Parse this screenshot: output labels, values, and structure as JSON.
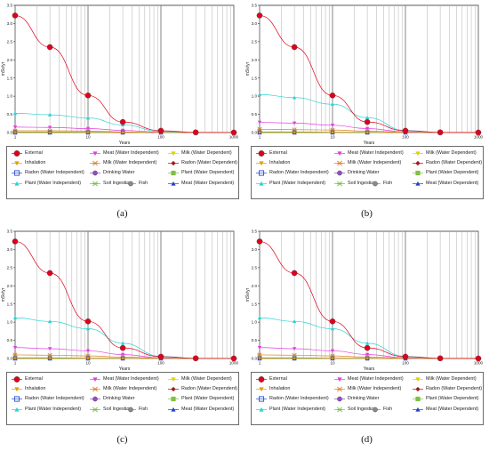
{
  "chart_data": [
    {
      "type": "line",
      "panel_label": "(a)",
      "xlabel": "Years",
      "ylabel": "mSv/yr",
      "xscale": "log",
      "xlim": [
        1,
        1000
      ],
      "ylim": [
        0,
        3.5
      ],
      "x_tick_labels": [
        "1",
        "10",
        "100",
        "1000"
      ],
      "y_tick_labels": [
        "0.0",
        "0.5",
        "1.0",
        "1.5",
        "2.0",
        "2.5",
        "3.0",
        "3.5"
      ],
      "grid": true,
      "legend_position": "bottom",
      "x": [
        1,
        3,
        10,
        30,
        100,
        300,
        1000
      ],
      "series": [
        {
          "name": "External",
          "color": "#e0001b",
          "marker": "circle",
          "values": [
            3.22,
            2.35,
            1.02,
            0.29,
            0.05,
            0.005,
            0.0
          ]
        },
        {
          "name": "Inhalation",
          "color": "#e0a000",
          "marker": "triangle-down",
          "values": [
            0.0,
            0.0,
            0.0,
            0.0,
            0.0,
            0.0,
            0.0
          ]
        },
        {
          "name": "Radon (Water Independent)",
          "color": "#2c4cd0",
          "marker": "square-open",
          "values": [
            0.0,
            0.0,
            0.0,
            0.0,
            0.0,
            0.0,
            0.0
          ]
        },
        {
          "name": "Plant (Water Independent)",
          "color": "#2fd2d2",
          "marker": "triangle-up",
          "values": [
            0.53,
            0.49,
            0.4,
            0.21,
            0.03,
            0.0,
            0.0
          ]
        },
        {
          "name": "Meat (Water Independent)",
          "color": "#e040e0",
          "marker": "triangle-down",
          "values": [
            0.15,
            0.14,
            0.11,
            0.06,
            0.01,
            0.0,
            0.0
          ]
        },
        {
          "name": "Milk (Water Independent)",
          "color": "#e08020",
          "marker": "asterisk",
          "values": [
            0.05,
            0.05,
            0.04,
            0.02,
            0.0,
            0.0,
            0.0
          ]
        },
        {
          "name": "Drinking Water",
          "color": "#9050c0",
          "marker": "circle",
          "values": [
            0.0,
            0.0,
            0.0,
            0.0,
            0.0,
            0.0,
            0.0
          ]
        },
        {
          "name": "Soil Ingestion",
          "color": "#70c040",
          "marker": "asterisk",
          "values": [
            0.02,
            0.02,
            0.01,
            0.01,
            0.0,
            0.0,
            0.0
          ]
        },
        {
          "name": "Fish",
          "color": "#8a8a8a",
          "marker": "circle",
          "values": [
            0.0,
            0.0,
            0.0,
            0.0,
            0.0,
            0.0,
            0.0
          ]
        },
        {
          "name": "Milk (Water Dependent)",
          "color": "#e0d000",
          "marker": "triangle-down",
          "values": [
            0.0,
            0.0,
            0.0,
            0.0,
            0.0,
            0.0,
            0.0
          ]
        },
        {
          "name": "Radon (Water Dependent)",
          "color": "#a01818",
          "marker": "diamond",
          "values": [
            0.0,
            0.0,
            0.0,
            0.0,
            0.0,
            0.0,
            0.0
          ]
        },
        {
          "name": "Plant (Water Dependent)",
          "color": "#80c040",
          "marker": "square",
          "values": [
            0.0,
            0.0,
            0.0,
            0.0,
            0.0,
            0.0,
            0.0
          ]
        },
        {
          "name": "Meat (Water Dependent)",
          "color": "#2040c8",
          "marker": "triangle-up",
          "values": [
            0.0,
            0.0,
            0.0,
            0.0,
            0.0,
            0.0,
            0.0
          ]
        }
      ]
    },
    {
      "type": "line",
      "panel_label": "(b)",
      "xlabel": "Years",
      "ylabel": "mSv/yr",
      "xscale": "log",
      "xlim": [
        1,
        1000
      ],
      "ylim": [
        0,
        3.5
      ],
      "x_tick_labels": [
        "1",
        "10",
        "100",
        "1000"
      ],
      "y_tick_labels": [
        "0.0",
        "0.5",
        "1.0",
        "1.5",
        "2.0",
        "2.5",
        "3.0",
        "3.5"
      ],
      "grid": true,
      "legend_position": "bottom",
      "x": [
        1,
        3,
        10,
        30,
        100,
        300,
        1000
      ],
      "series": [
        {
          "name": "External",
          "color": "#e0001b",
          "marker": "circle",
          "values": [
            3.22,
            2.35,
            1.02,
            0.29,
            0.05,
            0.005,
            0.0
          ]
        },
        {
          "name": "Inhalation",
          "color": "#e0a000",
          "marker": "triangle-down",
          "values": [
            0.0,
            0.0,
            0.0,
            0.0,
            0.0,
            0.0,
            0.0
          ]
        },
        {
          "name": "Radon (Water Independent)",
          "color": "#2c4cd0",
          "marker": "square-open",
          "values": [
            0.0,
            0.0,
            0.0,
            0.0,
            0.0,
            0.0,
            0.0
          ]
        },
        {
          "name": "Plant (Water Independent)",
          "color": "#2fd2d2",
          "marker": "triangle-up",
          "values": [
            1.05,
            0.96,
            0.78,
            0.41,
            0.06,
            0.0,
            0.0
          ]
        },
        {
          "name": "Meat (Water Independent)",
          "color": "#e040e0",
          "marker": "triangle-down",
          "values": [
            0.28,
            0.26,
            0.2,
            0.11,
            0.02,
            0.0,
            0.0
          ]
        },
        {
          "name": "Milk (Water Independent)",
          "color": "#e08020",
          "marker": "asterisk",
          "values": [
            0.09,
            0.08,
            0.07,
            0.04,
            0.01,
            0.0,
            0.0
          ]
        },
        {
          "name": "Drinking Water",
          "color": "#9050c0",
          "marker": "circle",
          "values": [
            0.0,
            0.0,
            0.0,
            0.0,
            0.0,
            0.0,
            0.0
          ]
        },
        {
          "name": "Soil Ingestion",
          "color": "#70c040",
          "marker": "asterisk",
          "values": [
            0.02,
            0.02,
            0.01,
            0.01,
            0.0,
            0.0,
            0.0
          ]
        },
        {
          "name": "Fish",
          "color": "#8a8a8a",
          "marker": "circle",
          "values": [
            0.0,
            0.0,
            0.0,
            0.0,
            0.0,
            0.0,
            0.0
          ]
        },
        {
          "name": "Milk (Water Dependent)",
          "color": "#e0d000",
          "marker": "triangle-down",
          "values": [
            0.0,
            0.0,
            0.0,
            0.0,
            0.0,
            0.0,
            0.0
          ]
        },
        {
          "name": "Radon (Water Dependent)",
          "color": "#a01818",
          "marker": "diamond",
          "values": [
            0.0,
            0.0,
            0.0,
            0.0,
            0.0,
            0.0,
            0.0
          ]
        },
        {
          "name": "Plant (Water Dependent)",
          "color": "#80c040",
          "marker": "square",
          "values": [
            0.0,
            0.0,
            0.0,
            0.0,
            0.0,
            0.0,
            0.0
          ]
        },
        {
          "name": "Meat (Water Dependent)",
          "color": "#2040c8",
          "marker": "triangle-up",
          "values": [
            0.0,
            0.0,
            0.0,
            0.0,
            0.0,
            0.0,
            0.0
          ]
        }
      ]
    },
    {
      "type": "line",
      "panel_label": "(c)",
      "xlabel": "Years",
      "ylabel": "mSv/yr",
      "xscale": "log",
      "xlim": [
        1,
        1000
      ],
      "ylim": [
        0,
        3.5
      ],
      "x_tick_labels": [
        "1",
        "10",
        "100",
        "1000"
      ],
      "y_tick_labels": [
        "0.0",
        "0.5",
        "1.0",
        "1.5",
        "2.0",
        "2.5",
        "3.0",
        "3.5"
      ],
      "grid": true,
      "legend_position": "bottom",
      "x": [
        1,
        3,
        10,
        30,
        100,
        300,
        1000
      ],
      "series": [
        {
          "name": "External",
          "color": "#e0001b",
          "marker": "circle",
          "values": [
            3.22,
            2.35,
            1.02,
            0.29,
            0.05,
            0.005,
            0.0
          ]
        },
        {
          "name": "Inhalation",
          "color": "#e0a000",
          "marker": "triangle-down",
          "values": [
            0.0,
            0.0,
            0.0,
            0.0,
            0.0,
            0.0,
            0.0
          ]
        },
        {
          "name": "Radon (Water Independent)",
          "color": "#2c4cd0",
          "marker": "square-open",
          "values": [
            0.0,
            0.0,
            0.0,
            0.0,
            0.0,
            0.0,
            0.0
          ]
        },
        {
          "name": "Plant (Water Independent)",
          "color": "#2fd2d2",
          "marker": "triangle-up",
          "values": [
            1.12,
            1.02,
            0.82,
            0.42,
            0.06,
            0.0,
            0.0
          ]
        },
        {
          "name": "Meat (Water Independent)",
          "color": "#e040e0",
          "marker": "triangle-down",
          "values": [
            0.3,
            0.27,
            0.21,
            0.11,
            0.02,
            0.0,
            0.0
          ]
        },
        {
          "name": "Milk (Water Independent)",
          "color": "#e08020",
          "marker": "asterisk",
          "values": [
            0.1,
            0.09,
            0.07,
            0.04,
            0.01,
            0.0,
            0.0
          ]
        },
        {
          "name": "Drinking Water",
          "color": "#9050c0",
          "marker": "circle",
          "values": [
            0.0,
            0.0,
            0.0,
            0.0,
            0.0,
            0.0,
            0.0
          ]
        },
        {
          "name": "Soil Ingestion",
          "color": "#70c040",
          "marker": "asterisk",
          "values": [
            0.02,
            0.02,
            0.01,
            0.01,
            0.0,
            0.0,
            0.0
          ]
        },
        {
          "name": "Fish",
          "color": "#8a8a8a",
          "marker": "circle",
          "values": [
            0.0,
            0.0,
            0.0,
            0.0,
            0.0,
            0.0,
            0.0
          ]
        },
        {
          "name": "Milk (Water Dependent)",
          "color": "#e0d000",
          "marker": "triangle-down",
          "values": [
            0.0,
            0.0,
            0.0,
            0.0,
            0.0,
            0.0,
            0.0
          ]
        },
        {
          "name": "Radon (Water Dependent)",
          "color": "#a01818",
          "marker": "diamond",
          "values": [
            0.0,
            0.0,
            0.0,
            0.0,
            0.0,
            0.0,
            0.0
          ]
        },
        {
          "name": "Plant (Water Dependent)",
          "color": "#80c040",
          "marker": "square",
          "values": [
            0.0,
            0.0,
            0.0,
            0.0,
            0.0,
            0.0,
            0.0
          ]
        },
        {
          "name": "Meat (Water Dependent)",
          "color": "#2040c8",
          "marker": "triangle-up",
          "values": [
            0.0,
            0.0,
            0.0,
            0.0,
            0.0,
            0.0,
            0.0
          ]
        }
      ]
    },
    {
      "type": "line",
      "panel_label": "(d)",
      "xlabel": "Years",
      "ylabel": "mSv/yr",
      "xscale": "log",
      "xlim": [
        1,
        1000
      ],
      "ylim": [
        0,
        3.5
      ],
      "x_tick_labels": [
        "1",
        "10",
        "100",
        "1000"
      ],
      "y_tick_labels": [
        "0.0",
        "0.5",
        "1.0",
        "1.5",
        "2.0",
        "2.5",
        "3.0",
        "3.5"
      ],
      "grid": true,
      "legend_position": "bottom",
      "x": [
        1,
        3,
        10,
        30,
        100,
        300,
        1000
      ],
      "series": [
        {
          "name": "External",
          "color": "#e0001b",
          "marker": "circle",
          "values": [
            3.22,
            2.35,
            1.02,
            0.29,
            0.05,
            0.005,
            0.0
          ]
        },
        {
          "name": "Inhalation",
          "color": "#e0a000",
          "marker": "triangle-down",
          "values": [
            0.0,
            0.0,
            0.0,
            0.0,
            0.0,
            0.0,
            0.0
          ]
        },
        {
          "name": "Radon (Water Independent)",
          "color": "#2c4cd0",
          "marker": "square-open",
          "values": [
            0.0,
            0.0,
            0.0,
            0.0,
            0.0,
            0.0,
            0.0
          ]
        },
        {
          "name": "Plant (Water Independent)",
          "color": "#2fd2d2",
          "marker": "triangle-up",
          "values": [
            1.12,
            1.02,
            0.82,
            0.42,
            0.06,
            0.0,
            0.0
          ]
        },
        {
          "name": "Meat (Water Independent)",
          "color": "#e040e0",
          "marker": "triangle-down",
          "values": [
            0.3,
            0.27,
            0.21,
            0.11,
            0.02,
            0.0,
            0.0
          ]
        },
        {
          "name": "Milk (Water Independent)",
          "color": "#e08020",
          "marker": "asterisk",
          "values": [
            0.1,
            0.09,
            0.07,
            0.04,
            0.01,
            0.0,
            0.0
          ]
        },
        {
          "name": "Drinking Water",
          "color": "#9050c0",
          "marker": "circle",
          "values": [
            0.0,
            0.0,
            0.0,
            0.0,
            0.0,
            0.0,
            0.0
          ]
        },
        {
          "name": "Soil Ingestion",
          "color": "#70c040",
          "marker": "asterisk",
          "values": [
            0.02,
            0.02,
            0.01,
            0.01,
            0.0,
            0.0,
            0.0
          ]
        },
        {
          "name": "Fish",
          "color": "#8a8a8a",
          "marker": "circle",
          "values": [
            0.0,
            0.0,
            0.0,
            0.0,
            0.0,
            0.0,
            0.0
          ]
        },
        {
          "name": "Milk (Water Dependent)",
          "color": "#e0d000",
          "marker": "triangle-down",
          "values": [
            0.0,
            0.0,
            0.0,
            0.0,
            0.0,
            0.0,
            0.0
          ]
        },
        {
          "name": "Radon (Water Dependent)",
          "color": "#a01818",
          "marker": "diamond",
          "values": [
            0.0,
            0.0,
            0.0,
            0.0,
            0.0,
            0.0,
            0.0
          ]
        },
        {
          "name": "Plant (Water Dependent)",
          "color": "#80c040",
          "marker": "square",
          "values": [
            0.0,
            0.0,
            0.0,
            0.0,
            0.0,
            0.0,
            0.0
          ]
        },
        {
          "name": "Meat (Water Dependent)",
          "color": "#2040c8",
          "marker": "triangle-up",
          "values": [
            0.0,
            0.0,
            0.0,
            0.0,
            0.0,
            0.0,
            0.0
          ]
        }
      ]
    }
  ]
}
